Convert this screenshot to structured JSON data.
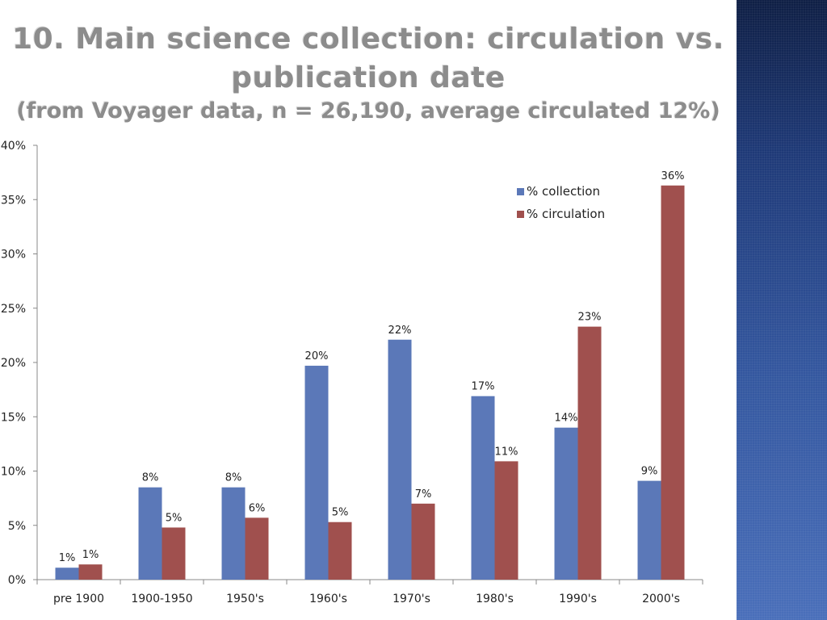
{
  "slide": {
    "title_line1": "10. Main science collection: circulation vs.",
    "title_line2": "publication date",
    "title_line3": "(from Voyager data, n = 26,190, average circulated 12%)"
  },
  "colors": {
    "collection": "#5b78b8",
    "circulation": "#a0504e",
    "side_band": "#2b4a8e"
  },
  "chart_data": {
    "type": "bar",
    "categories": [
      "pre 1900",
      "1900-1950",
      "1950's",
      "1960's",
      "1970's",
      "1980's",
      "1990's",
      "2000's"
    ],
    "series": [
      {
        "name": "% collection",
        "values": [
          1.1,
          8.5,
          8.5,
          19.7,
          22.1,
          16.9,
          14.0,
          9.1
        ],
        "labels": [
          "1%",
          "8%",
          "8%",
          "20%",
          "22%",
          "17%",
          "14%",
          "9%"
        ]
      },
      {
        "name": "% circulation",
        "values": [
          1.4,
          4.8,
          5.7,
          5.3,
          7.0,
          10.9,
          23.3,
          36.3
        ],
        "labels": [
          "1%",
          "5%",
          "6%",
          "5%",
          "7%",
          "11%",
          "23%",
          "36%"
        ]
      }
    ],
    "ylim": [
      0,
      40
    ],
    "yticks": [
      "0%",
      "5%",
      "10%",
      "15%",
      "20%",
      "25%",
      "30%",
      "35%",
      "40%"
    ],
    "legend_position": "top-right",
    "grid": false
  }
}
